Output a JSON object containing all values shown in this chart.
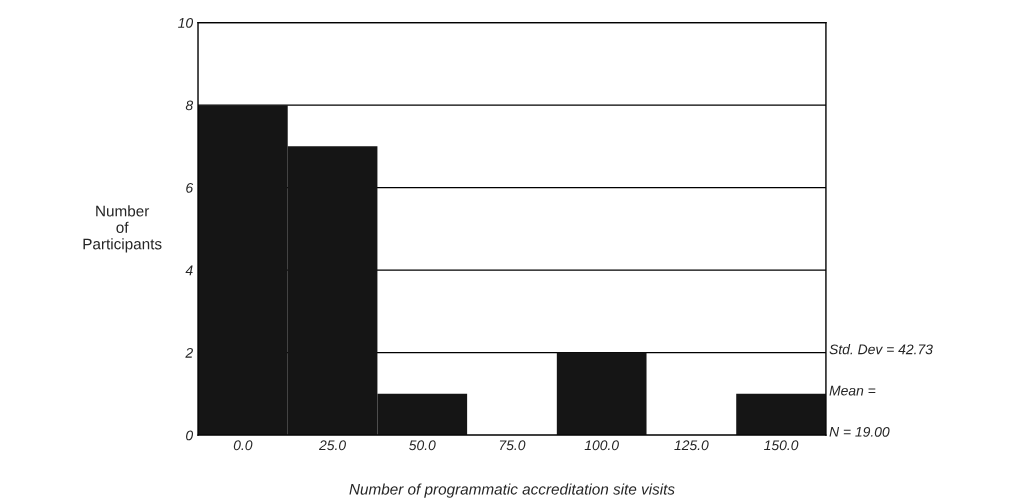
{
  "chart_data": {
    "type": "histogram",
    "xlabel": "Number of programmatic accreditation site visits",
    "ylabel": "Number\nof\nParticipants",
    "bins": [
      -12.5,
      12.5,
      37.5,
      62.5,
      87.5,
      112.5,
      137.5,
      162.5
    ],
    "values": [
      8,
      7,
      1,
      0,
      2,
      0,
      1
    ],
    "color": "#151515",
    "xlim": [
      -12.5,
      162.5
    ],
    "xticks": [
      {
        "value": 0,
        "label": "0.0"
      },
      {
        "value": 25,
        "label": "25.0"
      },
      {
        "value": 50,
        "label": "50.0"
      },
      {
        "value": 75,
        "label": "75.0"
      },
      {
        "value": 100,
        "label": "100.0"
      },
      {
        "value": 125,
        "label": "125.0"
      },
      {
        "value": 150,
        "label": "150.0"
      }
    ],
    "ylim": [
      0,
      10
    ],
    "yticks": [
      0,
      2,
      4,
      6,
      8,
      10
    ],
    "grid": "y",
    "annotations": [
      "Std. Dev = 42.73",
      "Mean =",
      "N = 19.00"
    ]
  }
}
